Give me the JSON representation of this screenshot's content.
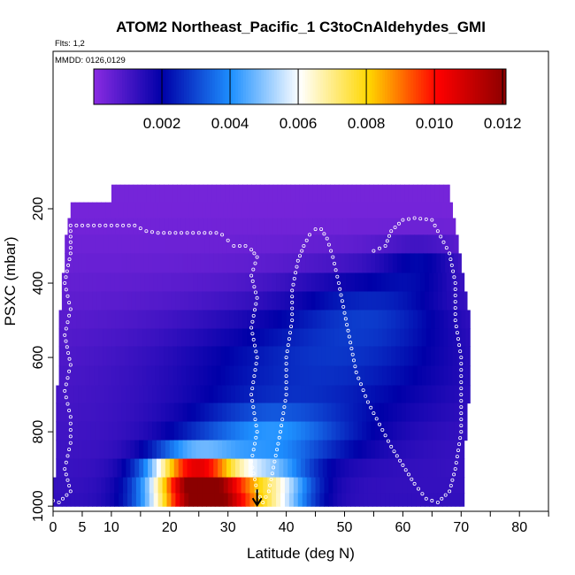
{
  "chart_data": {
    "type": "heatmap",
    "title": "ATOM2 Northeast_Pacific_1 C3toCnAldehydes_GMI",
    "annotations": [
      "Flts: 1,2",
      "MMDD: 0126,0129"
    ],
    "xlabel": "Latitude (deg N)",
    "ylabel": "PSXC (mbar)",
    "xlim": [
      0,
      85
    ],
    "ylim": [
      1000,
      0
    ],
    "x_ticks": [
      0,
      5,
      10,
      20,
      30,
      40,
      50,
      60,
      70,
      80
    ],
    "x_tick_labels": [
      "0",
      "5",
      "10",
      "20",
      "30",
      "40",
      "50",
      "60",
      "70",
      "80"
    ],
    "y_ticks": [
      200,
      400,
      600,
      800,
      1000
    ],
    "y_tick_labels": [
      "200",
      "400",
      "600",
      "800",
      "1000"
    ],
    "colorbar": {
      "range": [
        0.0,
        0.0121
      ],
      "ticks": [
        0.002,
        0.004,
        0.006,
        0.008,
        0.01,
        0.012
      ],
      "tick_labels": [
        "0.002",
        "0.004",
        "0.006",
        "0.008",
        "0.010",
        "0.012"
      ],
      "colors": [
        "#8a2be2",
        "#0000a8",
        "#1e90ff",
        "#ffffff",
        "#ffd700",
        "#ff0000",
        "#8b0000"
      ]
    },
    "lat_range_by_pressure_level": [
      {
        "p": 160,
        "lat_min": 10.0,
        "lat_max": 68.0
      },
      {
        "p": 205,
        "lat_min": 3.0,
        "lat_max": 68.5
      },
      {
        "p": 245,
        "lat_min": 2.5,
        "lat_max": 69.0
      },
      {
        "p": 295,
        "lat_min": 2.0,
        "lat_max": 69.5
      },
      {
        "p": 345,
        "lat_min": 2.0,
        "lat_max": 70.0
      },
      {
        "p": 400,
        "lat_min": 1.5,
        "lat_max": 70.5
      },
      {
        "p": 445,
        "lat_min": 1.5,
        "lat_max": 71.0
      },
      {
        "p": 500,
        "lat_min": 1.0,
        "lat_max": 71.5
      },
      {
        "p": 545,
        "lat_min": 1.0,
        "lat_max": 71.5
      },
      {
        "p": 595,
        "lat_min": 1.0,
        "lat_max": 71.5
      },
      {
        "p": 650,
        "lat_min": 1.0,
        "lat_max": 71.5
      },
      {
        "p": 700,
        "lat_min": 0.5,
        "lat_max": 71.5
      },
      {
        "p": 745,
        "lat_min": 0.5,
        "lat_max": 71.0
      },
      {
        "p": 800,
        "lat_min": 0.5,
        "lat_max": 71.0
      },
      {
        "p": 845,
        "lat_min": 0.5,
        "lat_max": 70.5
      },
      {
        "p": 900,
        "lat_min": 0.5,
        "lat_max": 70.5
      },
      {
        "p": 945,
        "lat_min": 0.0,
        "lat_max": 70.5
      },
      {
        "p": 985,
        "lat_min": 0.0,
        "lat_max": 70.5
      }
    ],
    "concentration_features": [
      {
        "lat": 26.0,
        "p": 980,
        "lat_halfwidth": 9.0,
        "p_halfwidth": 70,
        "value": 0.0112
      },
      {
        "lat": 24.0,
        "p": 900,
        "lat_halfwidth": 7.5,
        "p_halfwidth": 55,
        "value": 0.006
      },
      {
        "lat": 38.0,
        "p": 960,
        "lat_halfwidth": 7.0,
        "p_halfwidth": 80,
        "value": 0.004
      },
      {
        "lat": 37.0,
        "p": 810,
        "lat_halfwidth": 14.0,
        "p_halfwidth": 80,
        "value": 0.0025
      },
      {
        "lat": 45.0,
        "p": 620,
        "lat_halfwidth": 25.0,
        "p_halfwidth": 170,
        "value": 0.0018
      },
      {
        "lat": 55.0,
        "p": 460,
        "lat_halfwidth": 14.0,
        "p_halfwidth": 110,
        "value": 0.0014
      },
      {
        "lat": 63.0,
        "p": 350,
        "lat_halfwidth": 7.0,
        "p_halfwidth": 60,
        "value": 0.0012
      }
    ],
    "flight_track": [
      [
        0,
        985
      ],
      [
        1,
        990
      ],
      [
        3,
        960
      ],
      [
        2,
        900
      ],
      [
        3,
        830
      ],
      [
        3,
        760
      ],
      [
        2,
        690
      ],
      [
        3,
        620
      ],
      [
        2,
        540
      ],
      [
        3,
        470
      ],
      [
        2,
        400
      ],
      [
        3,
        320
      ],
      [
        3,
        260
      ],
      [
        3,
        245
      ],
      [
        6,
        245
      ],
      [
        10,
        245
      ],
      [
        14,
        245
      ],
      [
        16,
        260
      ],
      [
        18,
        265
      ],
      [
        20,
        265
      ],
      [
        23,
        265
      ],
      [
        26,
        265
      ],
      [
        28,
        265
      ],
      [
        29,
        270
      ],
      [
        30,
        285
      ],
      [
        31,
        300
      ],
      [
        33,
        300
      ],
      [
        34,
        310
      ],
      [
        35,
        330
      ],
      [
        34,
        380
      ],
      [
        35,
        440
      ],
      [
        34,
        520
      ],
      [
        35,
        600
      ],
      [
        34,
        700
      ],
      [
        35,
        800
      ],
      [
        34,
        880
      ],
      [
        35,
        960
      ],
      [
        36,
        990
      ],
      [
        37,
        960
      ],
      [
        38,
        880
      ],
      [
        39,
        800
      ],
      [
        40,
        700
      ],
      [
        40,
        600
      ],
      [
        41,
        500
      ],
      [
        41,
        420
      ],
      [
        42,
        340
      ],
      [
        43,
        300
      ],
      [
        44,
        270
      ],
      [
        45,
        255
      ],
      [
        46,
        255
      ],
      [
        47,
        280
      ],
      [
        48,
        330
      ],
      [
        49,
        400
      ],
      [
        50,
        480
      ],
      [
        51,
        560
      ],
      [
        52,
        640
      ],
      [
        54,
        720
      ],
      [
        56,
        780
      ],
      [
        58,
        840
      ],
      [
        60,
        890
      ],
      [
        62,
        940
      ],
      [
        64,
        980
      ],
      [
        66,
        990
      ],
      [
        68,
        960
      ],
      [
        69,
        900
      ],
      [
        70,
        800
      ],
      [
        70,
        700
      ],
      [
        70,
        600
      ],
      [
        69,
        500
      ],
      [
        69,
        400
      ],
      [
        68,
        320
      ],
      [
        66,
        260
      ],
      [
        65,
        230
      ],
      [
        62,
        225
      ],
      [
        60,
        230
      ],
      [
        58,
        260
      ],
      [
        57,
        300
      ],
      [
        54,
        320
      ]
    ],
    "marker": {
      "lat": 35.0,
      "p": 1000,
      "type": "arrow-down"
    }
  }
}
